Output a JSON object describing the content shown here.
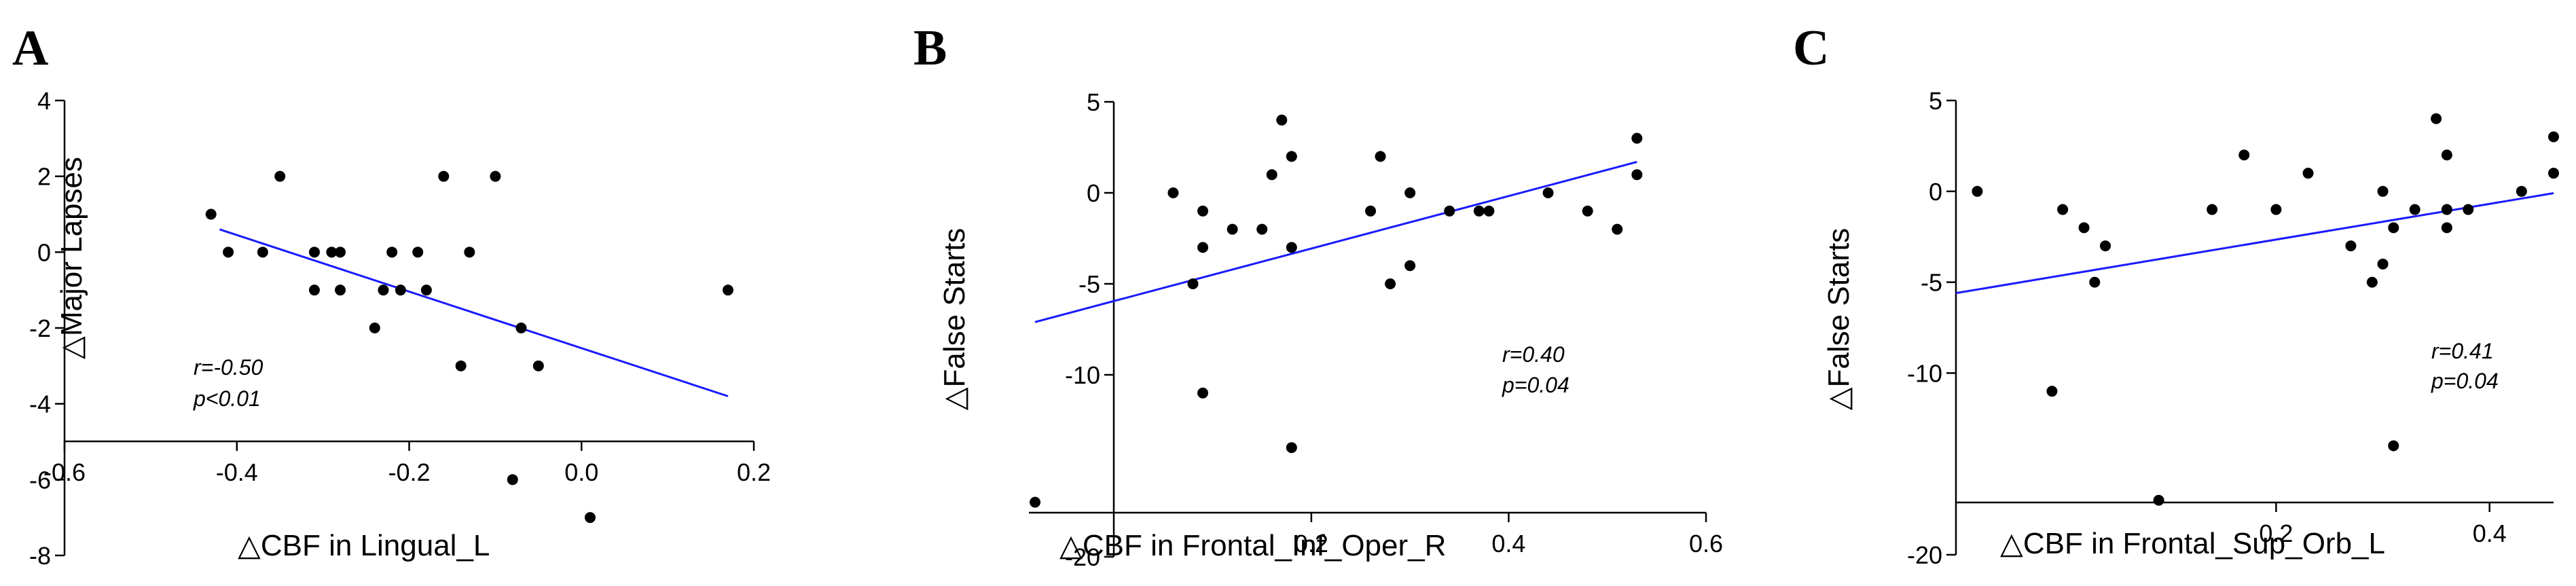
{
  "chart_data": [
    {
      "id": "A",
      "type": "scatter",
      "panel_label": "A",
      "xlabel": "△CBF in Lingual_L",
      "ylabel": "△Major Lapses",
      "xlim": [
        -0.6,
        0.2
      ],
      "ylim": [
        -8,
        4
      ],
      "x_ticks": [
        -0.6,
        -0.4,
        -0.2,
        0.0,
        0.2
      ],
      "x_tick_labels": [
        "-0.6",
        "-0.4",
        "-0.2",
        "0.0",
        "0.2"
      ],
      "y_ticks": [
        -8,
        -6,
        -4,
        -2,
        0,
        2,
        4
      ],
      "y_tick_labels": [
        "-8",
        "-6",
        "-4",
        "-2",
        "0",
        "2",
        "4"
      ],
      "annotations": [
        "r=-0.50",
        "p<0.01"
      ],
      "fit": {
        "x": [
          -0.42,
          0.17
        ],
        "y": [
          0.6,
          -3.8
        ]
      },
      "points": [
        {
          "x": -0.43,
          "y": 1
        },
        {
          "x": -0.41,
          "y": 0
        },
        {
          "x": -0.37,
          "y": 0
        },
        {
          "x": -0.35,
          "y": 2
        },
        {
          "x": -0.31,
          "y": 0
        },
        {
          "x": -0.31,
          "y": -1
        },
        {
          "x": -0.29,
          "y": 0
        },
        {
          "x": -0.28,
          "y": 0
        },
        {
          "x": -0.28,
          "y": -1
        },
        {
          "x": -0.24,
          "y": -2
        },
        {
          "x": -0.23,
          "y": -1
        },
        {
          "x": -0.22,
          "y": 0
        },
        {
          "x": -0.21,
          "y": -1
        },
        {
          "x": -0.19,
          "y": 0
        },
        {
          "x": -0.18,
          "y": -1
        },
        {
          "x": -0.16,
          "y": 2
        },
        {
          "x": -0.14,
          "y": -3
        },
        {
          "x": -0.13,
          "y": 0
        },
        {
          "x": -0.1,
          "y": 2
        },
        {
          "x": -0.08,
          "y": -6
        },
        {
          "x": -0.07,
          "y": -2
        },
        {
          "x": -0.05,
          "y": -3
        },
        {
          "x": 0.01,
          "y": -7
        },
        {
          "x": 0.17,
          "y": -1
        }
      ]
    },
    {
      "id": "B",
      "type": "scatter",
      "panel_label": "B",
      "xlabel": "△CBF in Frontal_Inf_Oper_R",
      "ylabel": "△False Starts",
      "xlim": [
        -0.1,
        0.6
      ],
      "ylim": [
        -20,
        5
      ],
      "x_ticks": [
        0.2,
        0.4,
        0.6
      ],
      "x_tick_labels": [
        "0.2",
        "0.4",
        "0.6"
      ],
      "y_ticks": [
        -20,
        -10,
        -5,
        0,
        5
      ],
      "y_tick_labels": [
        "-20",
        "-10",
        "-5",
        "0",
        "5"
      ],
      "annotations": [
        "r=0.40",
        "p=0.04"
      ],
      "fit": {
        "x": [
          -0.08,
          0.53
        ],
        "y": [
          -7.1,
          1.7
        ]
      },
      "points": [
        {
          "x": -0.08,
          "y": -17
        },
        {
          "x": 0.06,
          "y": 0
        },
        {
          "x": 0.08,
          "y": -5
        },
        {
          "x": 0.09,
          "y": -1
        },
        {
          "x": 0.09,
          "y": -3
        },
        {
          "x": 0.09,
          "y": -11
        },
        {
          "x": 0.12,
          "y": -2
        },
        {
          "x": 0.15,
          "y": -2
        },
        {
          "x": 0.16,
          "y": 1
        },
        {
          "x": 0.17,
          "y": 4
        },
        {
          "x": 0.18,
          "y": 2
        },
        {
          "x": 0.18,
          "y": -3
        },
        {
          "x": 0.18,
          "y": -14
        },
        {
          "x": 0.26,
          "y": -1
        },
        {
          "x": 0.27,
          "y": 2
        },
        {
          "x": 0.28,
          "y": -5
        },
        {
          "x": 0.3,
          "y": 0
        },
        {
          "x": 0.3,
          "y": -4
        },
        {
          "x": 0.34,
          "y": -1
        },
        {
          "x": 0.37,
          "y": -1
        },
        {
          "x": 0.38,
          "y": -1
        },
        {
          "x": 0.44,
          "y": 0
        },
        {
          "x": 0.48,
          "y": -1
        },
        {
          "x": 0.51,
          "y": -2
        },
        {
          "x": 0.53,
          "y": 3
        },
        {
          "x": 0.53,
          "y": 1
        }
      ]
    },
    {
      "id": "C",
      "type": "scatter",
      "panel_label": "C",
      "xlabel": "△CBF in Frontal_Sup_Orb_L",
      "ylabel": "△False Starts",
      "xlim": [
        -0.1,
        0.46
      ],
      "ylim": [
        -20,
        5
      ],
      "x_ticks": [
        0.2,
        0.4
      ],
      "x_tick_labels": [
        "0.2",
        "0.4"
      ],
      "y_ticks": [
        -20,
        -10,
        -5,
        0,
        5
      ],
      "y_tick_labels": [
        "-20",
        "-10",
        "-5",
        "0",
        "5"
      ],
      "annotations": [
        "r=0.41",
        "p=0.04"
      ],
      "fit": {
        "x": [
          -0.1,
          0.46
        ],
        "y": [
          -5.6,
          -0.1
        ]
      },
      "points": [
        {
          "x": -0.08,
          "y": 0
        },
        {
          "x": -0.01,
          "y": -11
        },
        {
          "x": 0.0,
          "y": -1
        },
        {
          "x": 0.02,
          "y": -2
        },
        {
          "x": 0.03,
          "y": -5
        },
        {
          "x": 0.04,
          "y": -3
        },
        {
          "x": 0.09,
          "y": -17
        },
        {
          "x": 0.14,
          "y": -1
        },
        {
          "x": 0.17,
          "y": 2
        },
        {
          "x": 0.2,
          "y": -1
        },
        {
          "x": 0.23,
          "y": 1
        },
        {
          "x": 0.27,
          "y": -3
        },
        {
          "x": 0.29,
          "y": -5
        },
        {
          "x": 0.3,
          "y": 0
        },
        {
          "x": 0.3,
          "y": -4
        },
        {
          "x": 0.31,
          "y": -2
        },
        {
          "x": 0.31,
          "y": -14
        },
        {
          "x": 0.33,
          "y": -1
        },
        {
          "x": 0.35,
          "y": 4
        },
        {
          "x": 0.36,
          "y": -1
        },
        {
          "x": 0.36,
          "y": -2
        },
        {
          "x": 0.36,
          "y": 2
        },
        {
          "x": 0.38,
          "y": -1
        },
        {
          "x": 0.43,
          "y": 0
        },
        {
          "x": 0.46,
          "y": 3
        },
        {
          "x": 0.46,
          "y": 1
        }
      ]
    }
  ]
}
